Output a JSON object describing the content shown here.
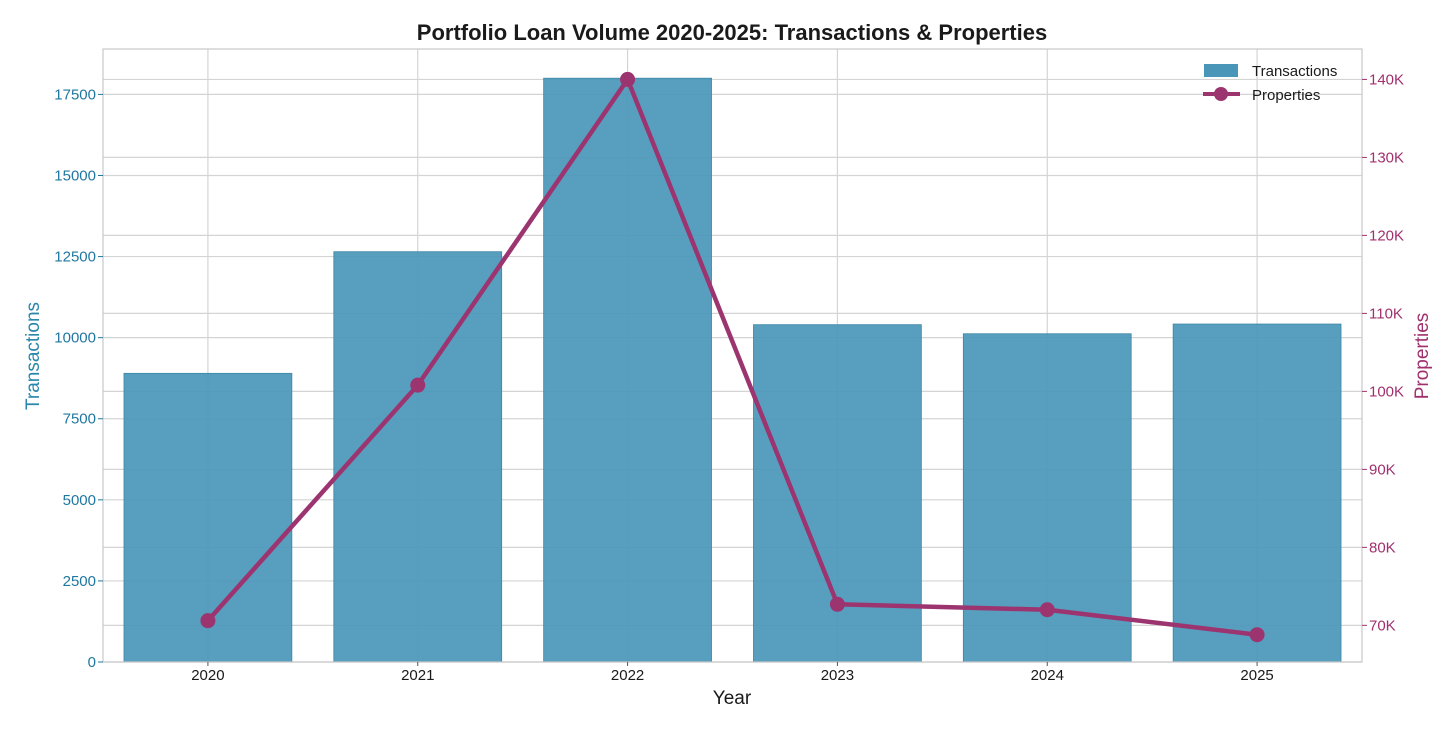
{
  "chart_data": {
    "type": "bar+line",
    "title": "Portfolio Loan Volume 2020-2025: Transactions & Properties",
    "xlabel": "Year",
    "ylabel_left": "Transactions",
    "ylabel_right": "Properties",
    "categories": [
      "2020",
      "2021",
      "2022",
      "2023",
      "2024",
      "2025"
    ],
    "series": [
      {
        "name": "Transactions",
        "kind": "bar",
        "axis": "left",
        "color": "#4a96b8",
        "values": [
          8900,
          12650,
          18000,
          10400,
          10120,
          10420
        ]
      },
      {
        "name": "Properties",
        "kind": "line",
        "axis": "right",
        "color": "#9c3470",
        "values": [
          70600,
          100800,
          140000,
          72700,
          72000,
          68800
        ]
      }
    ],
    "ylim_left": [
      0,
      18900
    ],
    "ylim_right": [
      65300,
      143900
    ],
    "yticks_left": [
      0,
      2500,
      5000,
      7500,
      10000,
      12500,
      15000,
      17500
    ],
    "yticks_right": [
      70000,
      80000,
      90000,
      100000,
      110000,
      120000,
      130000,
      140000
    ],
    "yticks_right_labels": [
      "70K",
      "80K",
      "90K",
      "100K",
      "110K",
      "120K",
      "130K",
      "140K"
    ],
    "grid": true,
    "legend_position": "top-right"
  }
}
